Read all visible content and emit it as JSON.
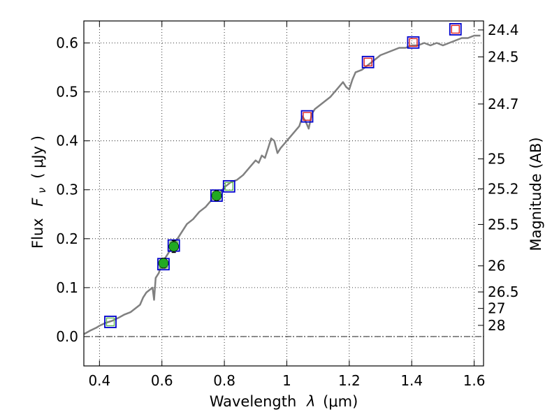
{
  "chart_data": {
    "type": "scatter",
    "title": "",
    "xlabel_text": "Wavelength",
    "xlabel_symbol": "λ",
    "xlabel_unit": "(μm)",
    "ylabel_text": "Flux",
    "ylabel_symbol": "F",
    "ylabel_subscript": "ν",
    "ylabel_unit": "( μJy )",
    "y2label": "Magnitude (AB)",
    "xlim": [
      0.35,
      1.63
    ],
    "ylim": [
      -0.06,
      0.645
    ],
    "grid": true,
    "xticks": [
      0.4,
      0.6,
      0.8,
      1.0,
      1.2,
      1.4,
      1.6
    ],
    "xtick_labels": [
      "0.4",
      "0.6",
      "0.8",
      "1",
      "1.2",
      "1.4",
      "1.6"
    ],
    "yticks": [
      0.0,
      0.1,
      0.2,
      0.3,
      0.4,
      0.5,
      0.6
    ],
    "ytick_labels": [
      "0.0",
      "0.1",
      "0.2",
      "0.3",
      "0.4",
      "0.5",
      "0.6"
    ],
    "y2ticks": [
      {
        "label": "24.4",
        "flux": 0.6266
      },
      {
        "label": "24.5",
        "flux": 0.5715
      },
      {
        "label": "24.7",
        "flux": 0.4753
      },
      {
        "label": "25",
        "flux": 0.3631
      },
      {
        "label": "25.2",
        "flux": 0.302
      },
      {
        "label": "25.5",
        "flux": 0.2291
      },
      {
        "label": "26",
        "flux": 0.1445
      },
      {
        "label": "26.5",
        "flux": 0.0912
      },
      {
        "label": "27",
        "flux": 0.0575
      },
      {
        "label": "28",
        "flux": 0.0229
      }
    ],
    "series": [
      {
        "kind": "line",
        "color": "#808080",
        "x": [
          0.35,
          0.37,
          0.39,
          0.4,
          0.42,
          0.44,
          0.46,
          0.48,
          0.5,
          0.51,
          0.52,
          0.53,
          0.54,
          0.55,
          0.56,
          0.57,
          0.575,
          0.58,
          0.59,
          0.6,
          0.61,
          0.62,
          0.63,
          0.64,
          0.65,
          0.66,
          0.68,
          0.7,
          0.72,
          0.74,
          0.76,
          0.78,
          0.8,
          0.82,
          0.84,
          0.86,
          0.88,
          0.9,
          0.91,
          0.92,
          0.93,
          0.94,
          0.95,
          0.96,
          0.97,
          0.98,
          1.0,
          1.02,
          1.04,
          1.05,
          1.06,
          1.07,
          1.08,
          1.09,
          1.1,
          1.12,
          1.14,
          1.16,
          1.18,
          1.19,
          1.2,
          1.21,
          1.22,
          1.24,
          1.26,
          1.28,
          1.3,
          1.32,
          1.34,
          1.36,
          1.38,
          1.4,
          1.42,
          1.44,
          1.46,
          1.48,
          1.5,
          1.52,
          1.54,
          1.56,
          1.58,
          1.6,
          1.62
        ],
        "y": [
          0.005,
          0.012,
          0.018,
          0.022,
          0.028,
          0.032,
          0.038,
          0.045,
          0.05,
          0.055,
          0.06,
          0.065,
          0.08,
          0.09,
          0.095,
          0.1,
          0.075,
          0.12,
          0.13,
          0.15,
          0.16,
          0.17,
          0.18,
          0.19,
          0.2,
          0.21,
          0.23,
          0.24,
          0.255,
          0.265,
          0.28,
          0.29,
          0.305,
          0.315,
          0.32,
          0.33,
          0.345,
          0.36,
          0.355,
          0.37,
          0.365,
          0.385,
          0.405,
          0.4,
          0.375,
          0.385,
          0.4,
          0.415,
          0.43,
          0.45,
          0.44,
          0.425,
          0.455,
          0.465,
          0.47,
          0.48,
          0.49,
          0.505,
          0.52,
          0.51,
          0.505,
          0.525,
          0.54,
          0.545,
          0.555,
          0.565,
          0.575,
          0.58,
          0.585,
          0.59,
          0.59,
          0.595,
          0.595,
          0.6,
          0.595,
          0.6,
          0.595,
          0.6,
          0.605,
          0.61,
          0.61,
          0.615,
          0.615
        ]
      },
      {
        "kind": "square",
        "name_hidden": "model blue",
        "color": "#0000cc",
        "x": [
          0.435,
          0.605,
          0.638,
          0.775,
          0.815,
          1.065,
          1.26,
          1.405,
          1.54
        ],
        "y": [
          0.03,
          0.148,
          0.186,
          0.288,
          0.307,
          0.45,
          0.561,
          0.601,
          0.628
        ]
      },
      {
        "kind": "square-small",
        "color_green": "#66bb55",
        "color_red": "#dd2222",
        "x": [
          0.435,
          0.605,
          0.638,
          0.775,
          0.815,
          1.065,
          1.26,
          1.405,
          1.54
        ],
        "y": [
          0.03,
          0.148,
          0.186,
          0.288,
          0.307,
          0.45,
          0.561,
          0.601,
          0.628
        ],
        "colors": [
          "green",
          "green",
          "green",
          "green",
          "green",
          "red",
          "red",
          "red",
          "red"
        ]
      },
      {
        "kind": "circle",
        "color": "#22aa22",
        "x": [
          0.605,
          0.638,
          0.775
        ],
        "y": [
          0.15,
          0.184,
          0.288
        ],
        "yerr": [
          0.01,
          0.012,
          0.01
        ]
      }
    ],
    "colors": {
      "line": "#808080",
      "blue": "#0000cc",
      "green": "#66bb55",
      "red": "#dd2222",
      "circle": "#22aa22"
    }
  }
}
